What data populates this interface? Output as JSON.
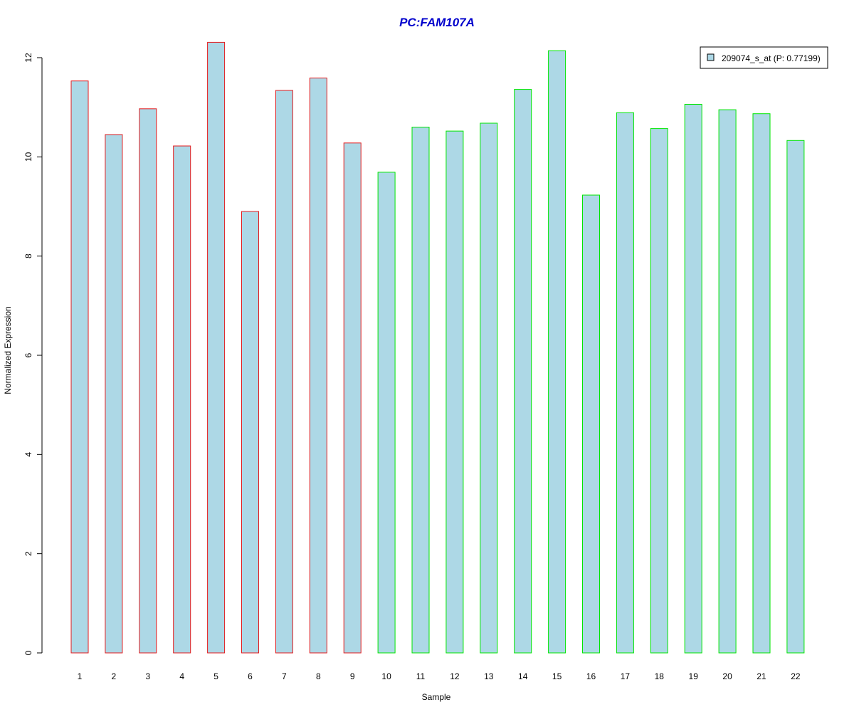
{
  "chart_data": {
    "type": "bar",
    "title": "PC:FAM107A",
    "xlabel": "Sample",
    "ylabel": "Normalized Expression",
    "ylim": [
      0,
      12.4
    ],
    "yticks": [
      0,
      2,
      4,
      6,
      8,
      10,
      12
    ],
    "grid": false,
    "legend_position": "top-right",
    "categories": [
      "1",
      "2",
      "3",
      "4",
      "5",
      "6",
      "7",
      "8",
      "9",
      "10",
      "11",
      "12",
      "13",
      "14",
      "15",
      "16",
      "17",
      "18",
      "19",
      "20",
      "21",
      "22"
    ],
    "series": [
      {
        "name": "209074_s_at (P: 0.77199)",
        "values": [
          11.53,
          10.45,
          10.97,
          10.22,
          12.31,
          8.9,
          11.34,
          11.59,
          10.28,
          9.69,
          10.6,
          10.52,
          10.68,
          11.36,
          12.14,
          9.23,
          10.89,
          10.57,
          11.06,
          10.95,
          10.87,
          10.33
        ],
        "fill": "#add8e6",
        "border_colors": [
          "#e31a1c",
          "#e31a1c",
          "#e31a1c",
          "#e31a1c",
          "#e31a1c",
          "#e31a1c",
          "#e31a1c",
          "#e31a1c",
          "#e31a1c",
          "#00e600",
          "#00e600",
          "#00e600",
          "#00e600",
          "#00e600",
          "#00e600",
          "#00e600",
          "#00e600",
          "#00e600",
          "#00e600",
          "#00e600",
          "#00e600",
          "#00e600"
        ]
      }
    ],
    "colors": {
      "title": "#0000cc",
      "axis": "#000000"
    }
  }
}
